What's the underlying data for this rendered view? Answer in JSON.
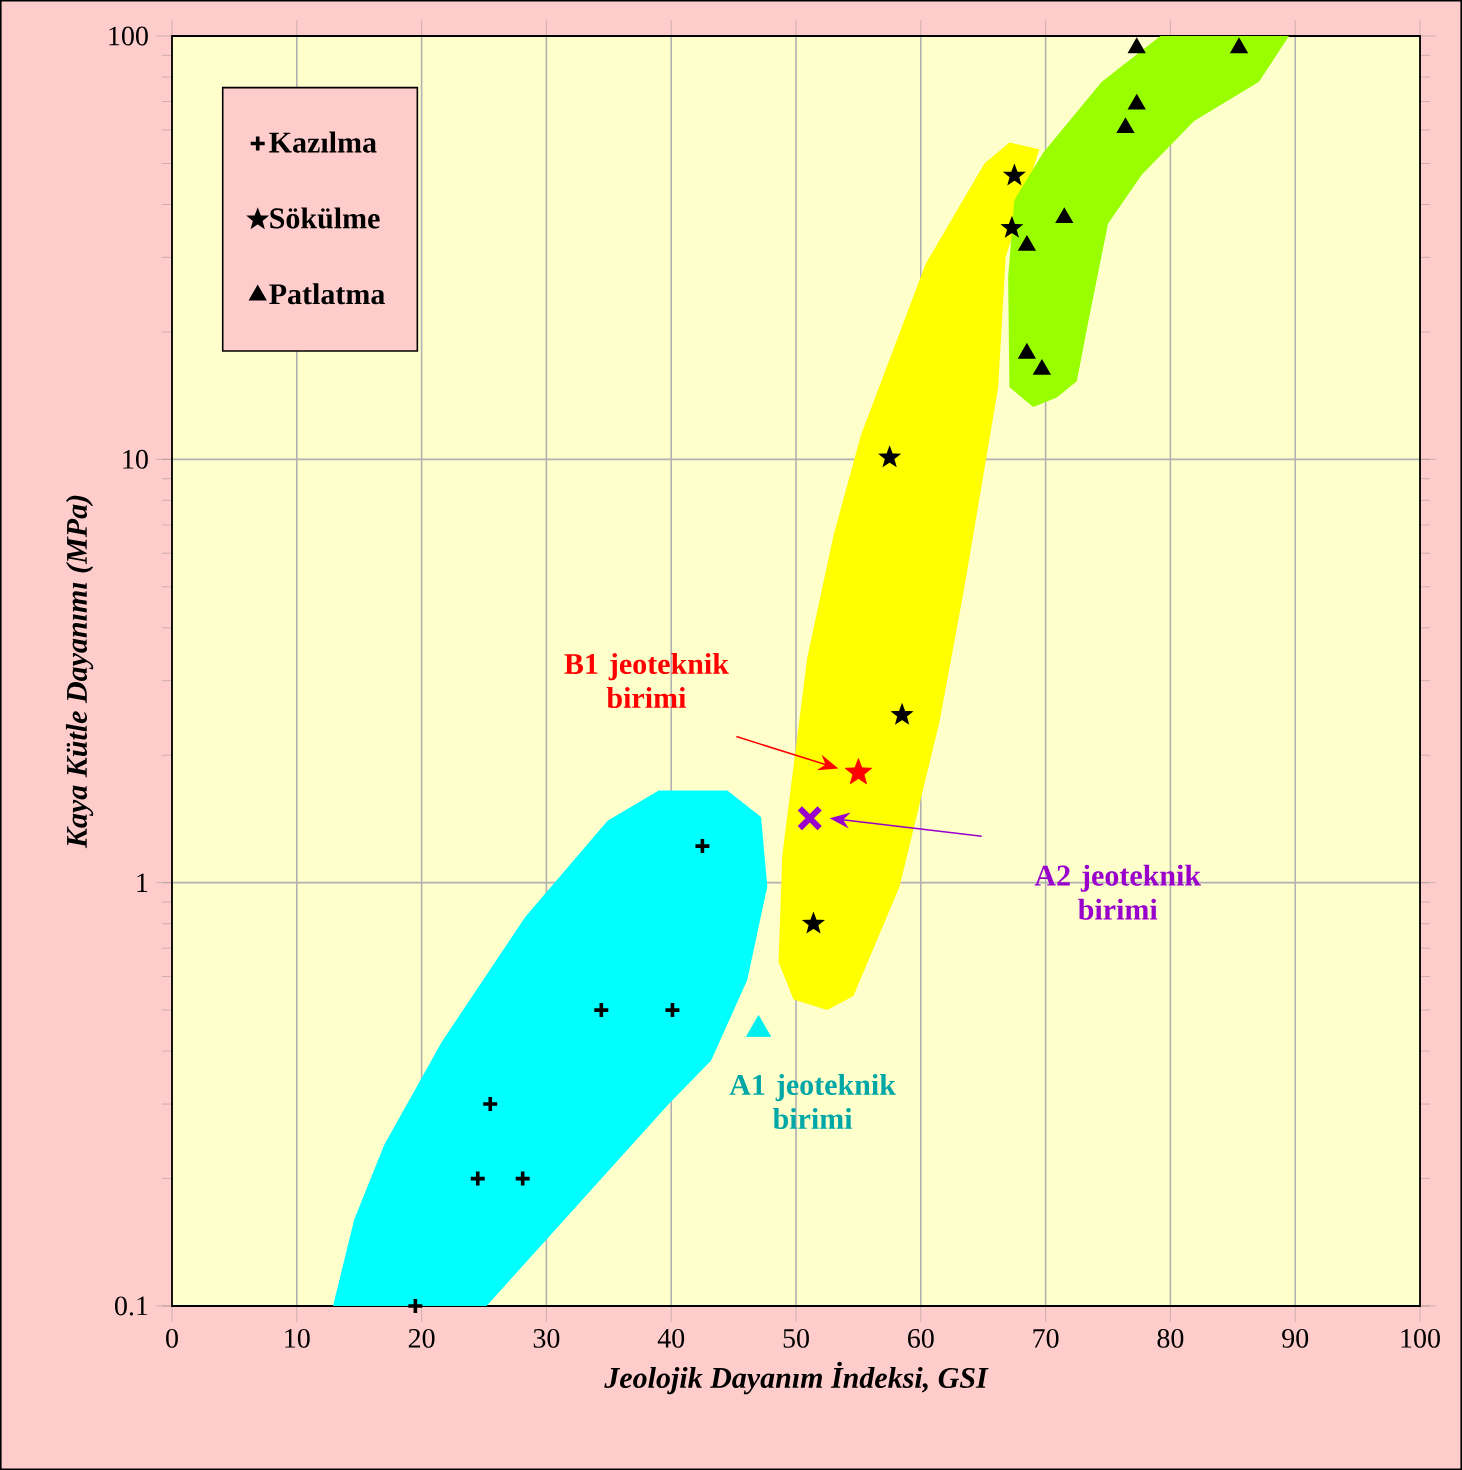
{
  "chart_data": {
    "type": "scatter",
    "xlabel": "Jeolojik Dayanım İndeksi, GSI",
    "ylabel": "Kaya Kütle Dayanımı (MPa)",
    "log": "y",
    "grid": true,
    "legend": "top left",
    "xlim": [
      0,
      100
    ],
    "ylim": [
      0.1,
      100
    ],
    "xticks": [
      0,
      10,
      20,
      30,
      40,
      50,
      60,
      70,
      80,
      90,
      100
    ],
    "yticks": [
      0.1,
      1,
      10,
      100
    ],
    "series": [
      {
        "type": "area",
        "color": "#00ffff",
        "x": [
          12.9,
          14.6,
          17.0,
          21.6,
          28.3,
          34.9,
          39.0,
          44.5,
          47.2,
          47.7,
          46.1,
          43.2,
          39.8,
          25.2
        ],
        "values": [
          0.1,
          0.16,
          0.24,
          0.42,
          0.83,
          1.4,
          1.65,
          1.65,
          1.43,
          0.98,
          0.59,
          0.38,
          0.3,
          0.1
        ]
      },
      {
        "type": "area",
        "color": "#ffff00",
        "x": [
          67.1,
          69.5,
          66.8,
          66.2,
          63.5,
          61.5,
          58.3,
          54.6,
          52.5,
          49.8,
          48.6,
          48.9,
          50.9,
          53.0,
          55.2,
          60.4,
          65.1
        ],
        "values": [
          56,
          54,
          30,
          14.8,
          5.0,
          2.4,
          0.98,
          0.54,
          0.5,
          0.53,
          0.65,
          1.16,
          3.4,
          6.6,
          11.4,
          29,
          50
        ]
      },
      {
        "type": "area",
        "color": "#99ff00",
        "x": [
          67.0,
          67.1,
          69.0,
          70.9,
          72.5,
          73.4,
          75.0,
          77.7,
          81.9,
          87.1,
          89.5,
          79.2,
          74.5,
          69.8,
          67.5
        ],
        "values": [
          27,
          14.8,
          13.3,
          14.0,
          15.3,
          21,
          36,
          47,
          63,
          78,
          100,
          100,
          78,
          53,
          41
        ]
      },
      {
        "name": "Kazılma",
        "marker": "plus",
        "color": "#000000",
        "x": [
          19.5,
          24.5,
          25.5,
          28.1,
          34.4,
          40.1,
          42.5
        ],
        "values": [
          0.1,
          0.2,
          0.3,
          0.2,
          0.5,
          0.5,
          1.22
        ]
      },
      {
        "name": "Sökülme",
        "marker": "star",
        "color": "#000000",
        "x": [
          51.4,
          58.5,
          57.5,
          67.3,
          67.5
        ],
        "values": [
          0.8,
          2.49,
          10.1,
          35.2,
          46.8
        ]
      },
      {
        "name": "Patlatma",
        "marker": "triangle",
        "color": "#000000",
        "x": [
          68.5,
          71.5,
          68.5,
          69.7,
          76.4,
          77.3,
          77.3,
          85.5
        ],
        "values": [
          32,
          37.2,
          17.8,
          16.3,
          60.7,
          69,
          93.7,
          93.7
        ]
      },
      {
        "marker": "star",
        "color": "#ff0000",
        "x": [
          55.0
        ],
        "values": [
          1.82
        ]
      },
      {
        "marker": "cross",
        "color": "#9900cc",
        "x": [
          51.1
        ],
        "values": [
          1.42
        ]
      },
      {
        "marker": "triangle",
        "color": "#00eeee",
        "x": [
          47.0
        ],
        "values": [
          0.45
        ]
      }
    ],
    "annotations": [
      "B1 jeoteknik birimi",
      "A2 jeoteknik birimi",
      "A1 jeoteknik birimi"
    ]
  }
}
